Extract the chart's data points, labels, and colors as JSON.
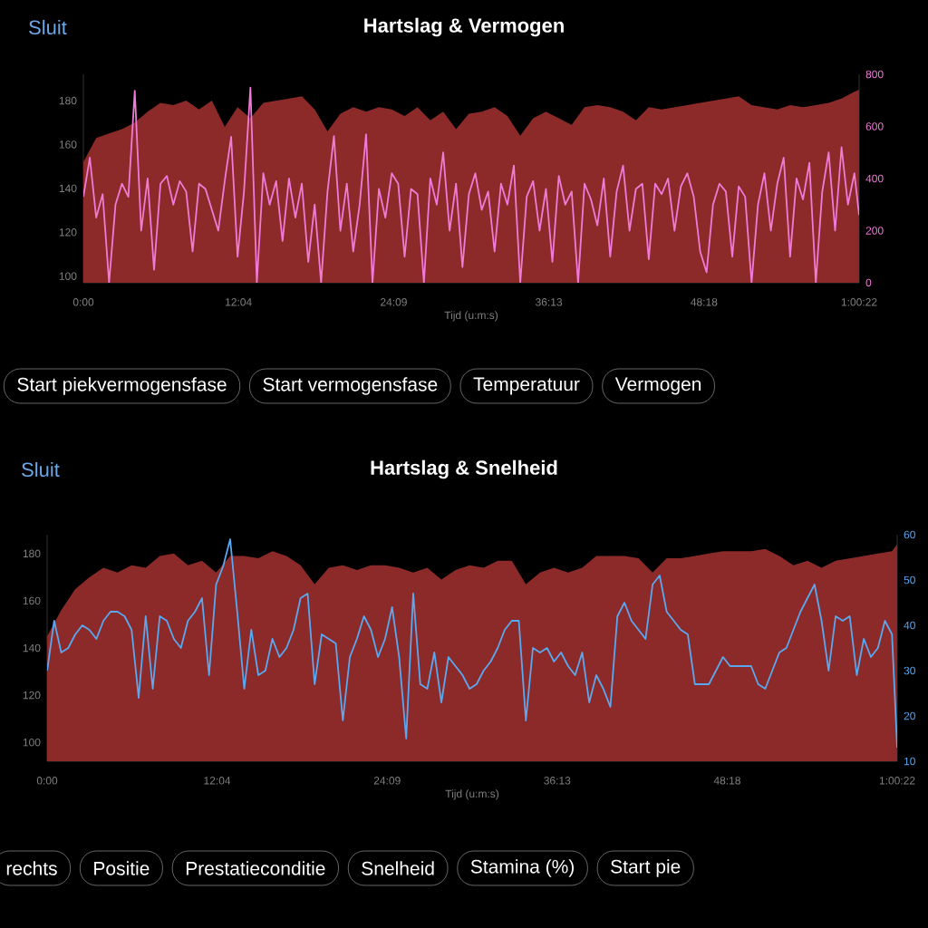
{
  "chart_data": [
    {
      "type": "area",
      "title": "Hartslag & Vermogen",
      "xlabel": "Tijd (u:m:s)",
      "x": [
        0,
        1,
        2,
        3,
        4,
        5,
        6,
        7,
        8,
        9,
        10,
        11,
        12,
        13,
        14,
        15,
        16,
        17,
        18,
        19,
        20,
        21,
        22,
        23,
        24,
        25,
        26,
        27,
        28,
        29,
        30,
        31,
        32,
        33,
        34,
        35,
        36,
        37,
        38,
        39,
        40,
        41,
        42,
        43,
        44,
        45,
        46,
        47,
        48,
        49,
        50,
        51,
        52,
        53,
        54,
        55,
        56,
        57,
        58,
        59,
        60,
        60.37
      ],
      "xlim": [
        0,
        60.37
      ],
      "xticks": [
        {
          "value": 0,
          "label": "0:00"
        },
        {
          "value": 12.07,
          "label": "12:04"
        },
        {
          "value": 24.15,
          "label": "24:09"
        },
        {
          "value": 36.22,
          "label": "36:13"
        },
        {
          "value": 48.3,
          "label": "48:18"
        },
        {
          "value": 60.37,
          "label": "1:00:22"
        }
      ],
      "ylim": [
        97,
        192
      ],
      "yticks": [
        100,
        120,
        140,
        160,
        180
      ],
      "y2lim": [
        0,
        800
      ],
      "y2ticks": [
        0,
        200,
        400,
        600,
        800
      ],
      "series": [
        {
          "color": "#8c2a2a",
          "values": [
            152,
            163,
            165,
            167,
            170,
            175,
            179,
            178,
            180,
            176,
            180,
            168,
            177,
            172,
            179,
            180,
            181,
            182,
            176,
            166,
            174,
            177,
            175,
            177,
            176,
            173,
            177,
            171,
            175,
            167,
            174,
            175,
            177,
            173,
            164,
            172,
            175,
            172,
            169,
            177,
            178,
            177,
            175,
            171,
            177,
            176,
            177,
            178,
            179,
            180,
            181,
            182,
            178,
            177,
            176,
            178,
            177,
            178,
            179,
            181,
            184,
            185
          ]
        },
        {
          "type": "line",
          "axis": "y2",
          "color": "#f07ad8",
          "x": [
            0,
            0.5,
            1,
            1.5,
            2,
            2.5,
            3,
            3.5,
            4,
            4.5,
            5,
            5.5,
            6,
            6.5,
            7,
            7.5,
            8,
            8.5,
            9,
            9.5,
            10,
            10.5,
            11,
            11.5,
            12,
            12.5,
            13,
            13.5,
            14,
            14.5,
            15,
            15.5,
            16,
            16.5,
            17,
            17.5,
            18,
            18.5,
            19,
            19.5,
            20,
            20.5,
            21,
            21.5,
            22,
            22.5,
            23,
            23.5,
            24,
            24.5,
            25,
            25.5,
            26,
            26.5,
            27,
            27.5,
            28,
            28.5,
            29,
            29.5,
            30,
            30.5,
            31,
            31.5,
            32,
            32.5,
            33,
            33.5,
            34,
            34.5,
            35,
            35.5,
            36,
            36.5,
            37,
            37.5,
            38,
            38.5,
            39,
            39.5,
            40,
            40.5,
            41,
            41.5,
            42,
            42.5,
            43,
            43.5,
            44,
            44.5,
            45,
            45.5,
            46,
            46.5,
            47,
            47.5,
            48,
            48.5,
            49,
            49.5,
            50,
            50.5,
            51,
            51.5,
            52,
            52.5,
            53,
            53.5,
            54,
            54.5,
            55,
            55.5,
            56,
            56.5,
            57,
            57.5,
            58,
            58.5,
            59,
            59.5,
            60,
            60.37
          ],
          "values": [
            330,
            480,
            250,
            340,
            0,
            300,
            380,
            330,
            737,
            200,
            400,
            50,
            380,
            410,
            300,
            390,
            350,
            120,
            380,
            360,
            280,
            200,
            390,
            560,
            100,
            350,
            749,
            0,
            420,
            300,
            390,
            160,
            400,
            250,
            380,
            80,
            300,
            0,
            350,
            563,
            200,
            380,
            120,
            300,
            570,
            0,
            360,
            250,
            420,
            380,
            100,
            360,
            340,
            0,
            400,
            300,
            500,
            200,
            380,
            60,
            340,
            420,
            280,
            350,
            120,
            380,
            300,
            450,
            0,
            330,
            390,
            200,
            360,
            80,
            410,
            300,
            350,
            0,
            380,
            320,
            220,
            400,
            100,
            350,
            450,
            200,
            360,
            380,
            90,
            380,
            340,
            400,
            200,
            370,
            420,
            330,
            120,
            40,
            300,
            380,
            350,
            100,
            370,
            330,
            0,
            300,
            420,
            200,
            380,
            480,
            100,
            400,
            320,
            460,
            0,
            350,
            500,
            200,
            520,
            300,
            420,
            260
          ]
        }
      ],
      "annotations": [
        "Sluit",
        "Start piekvermogensfase",
        "Start vermogensfase",
        "Temperatuur",
        "Vermogen"
      ]
    },
    {
      "type": "area",
      "title": "Hartslag & Snelheid",
      "xlabel": "Tijd (u:m:s)",
      "x": [
        0,
        1,
        2,
        3,
        4,
        5,
        6,
        7,
        8,
        9,
        10,
        11,
        12,
        13,
        14,
        15,
        16,
        17,
        18,
        19,
        20,
        21,
        22,
        23,
        24,
        25,
        26,
        27,
        28,
        29,
        30,
        31,
        32,
        33,
        34,
        35,
        36,
        37,
        38,
        39,
        40,
        41,
        42,
        43,
        44,
        45,
        46,
        47,
        48,
        49,
        50,
        51,
        52,
        53,
        54,
        55,
        56,
        57,
        58,
        59,
        60,
        60.37
      ],
      "xlim": [
        0,
        60.37
      ],
      "xticks": [
        {
          "value": 0,
          "label": "0:00"
        },
        {
          "value": 12.07,
          "label": "12:04"
        },
        {
          "value": 24.15,
          "label": "24:09"
        },
        {
          "value": 36.22,
          "label": "36:13"
        },
        {
          "value": 48.3,
          "label": "48:18"
        },
        {
          "value": 60.37,
          "label": "1:00:22"
        }
      ],
      "ylim": [
        92,
        188
      ],
      "yticks": [
        100,
        120,
        140,
        160,
        180
      ],
      "y2lim": [
        10,
        60
      ],
      "y2ticks": [
        10,
        20,
        30,
        40,
        50,
        60
      ],
      "series": [
        {
          "color": "#8c2a2a",
          "values": [
            145,
            156,
            165,
            170,
            174,
            172,
            175,
            174,
            179,
            180,
            175,
            177,
            172,
            179,
            179,
            178,
            181,
            179,
            175,
            167,
            174,
            175,
            173,
            175,
            175,
            174,
            172,
            174,
            169,
            173,
            175,
            174,
            177,
            177,
            167,
            172,
            174,
            172,
            174,
            179,
            179,
            179,
            178,
            172,
            178,
            178,
            179,
            180,
            181,
            181,
            181,
            182,
            179,
            175,
            177,
            174,
            177,
            178,
            179,
            180,
            181,
            184
          ]
        },
        {
          "type": "line",
          "axis": "y2",
          "color": "#5aa8f0",
          "x": [
            0,
            0.5,
            1,
            1.5,
            2,
            2.5,
            3,
            3.5,
            4,
            4.5,
            5,
            5.5,
            6,
            6.5,
            7,
            7.5,
            8,
            8.5,
            9,
            9.5,
            10,
            10.5,
            11,
            11.5,
            12,
            12.5,
            13,
            13.5,
            14,
            14.5,
            15,
            15.5,
            16,
            16.5,
            17,
            17.5,
            18,
            18.5,
            19,
            19.5,
            20,
            20.5,
            21,
            21.5,
            22,
            22.5,
            23,
            23.5,
            24,
            24.5,
            25,
            25.5,
            26,
            26.5,
            27,
            27.5,
            28,
            28.5,
            29,
            29.5,
            30,
            30.5,
            31,
            31.5,
            32,
            32.5,
            33,
            33.5,
            34,
            34.5,
            35,
            35.5,
            36,
            36.5,
            37,
            37.5,
            38,
            38.5,
            39,
            39.5,
            40,
            40.5,
            41,
            41.5,
            42,
            42.5,
            43,
            43.5,
            44,
            44.5,
            45,
            45.5,
            46,
            46.5,
            47,
            47.5,
            48,
            48.5,
            49,
            49.5,
            50,
            50.5,
            51,
            51.5,
            52,
            52.5,
            53,
            53.5,
            54,
            54.5,
            55,
            55.5,
            56,
            56.5,
            57,
            57.5,
            58,
            58.5,
            59,
            59.5,
            60,
            60.37
          ],
          "values": [
            30,
            41,
            34,
            35,
            38,
            40,
            39,
            37,
            41,
            43,
            43,
            42,
            39,
            24,
            42,
            26,
            42,
            41,
            37,
            35,
            41,
            43,
            46,
            29,
            49,
            53,
            59,
            43,
            26,
            39,
            29,
            30,
            37,
            33,
            35,
            39,
            46,
            47,
            27,
            38,
            37,
            36,
            19,
            33,
            37,
            42,
            39,
            33,
            37,
            44,
            33,
            15,
            47,
            27,
            26,
            34,
            23,
            33,
            31,
            29,
            26,
            27,
            30,
            32,
            35,
            39,
            41,
            41,
            19,
            35,
            34,
            35,
            32,
            34,
            31,
            29,
            34,
            23,
            29,
            26,
            22,
            42,
            45,
            41,
            39,
            37,
            49,
            51,
            43,
            41,
            39,
            38,
            27,
            27,
            27,
            30,
            33,
            31,
            31,
            31,
            31,
            27,
            26,
            30,
            34,
            35,
            39,
            43,
            46,
            49,
            41,
            30,
            42,
            41,
            42,
            29,
            37,
            33,
            35,
            41,
            38,
            13
          ]
        }
      ],
      "annotations": [
        "Sluit",
        "rechts",
        "Positie",
        "Prestatieconditie",
        "Snelheid",
        "Stamina (%)",
        "Start pie"
      ]
    }
  ]
}
